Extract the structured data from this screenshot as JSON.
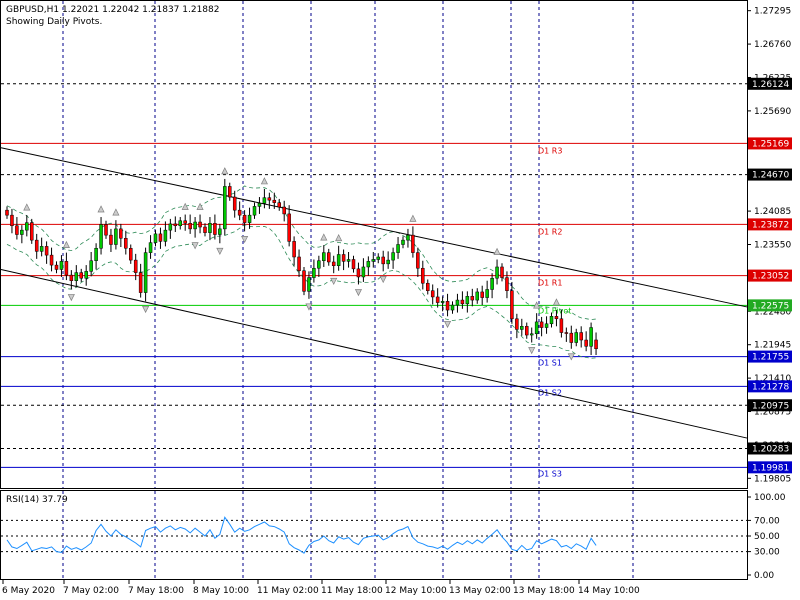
{
  "header": {
    "symbol_line": "GBPUSD,H1  1.22021 1.22042 1.21837 1.21882",
    "subtitle": "Showing Daily Pivots."
  },
  "colors": {
    "background": "#ffffff",
    "bull": "#00c800",
    "bear": "#ff0000",
    "envelope": "#2e8b57",
    "rsi": "#1e90ff",
    "grid": "#00008b",
    "resistance": "#dd0000",
    "support": "#0000cc",
    "pivot": "#00cc00",
    "fractal": "#808080",
    "channel": "#000000"
  },
  "price_axis": {
    "ticks": [
      "1.27295",
      "1.26760",
      "1.26225",
      "1.25690",
      "1.25155",
      "1.24620",
      "1.24085",
      "1.23550",
      "1.23015",
      "1.22480",
      "1.21945",
      "1.21410",
      "1.20875",
      "1.20340",
      "1.19805"
    ],
    "boxes": [
      {
        "label": "1.26124",
        "color": "#000000"
      },
      {
        "label": "1.25169",
        "color": "#dd0000"
      },
      {
        "label": "1.24670",
        "color": "#000000"
      },
      {
        "label": "1.23872",
        "color": "#dd0000"
      },
      {
        "label": "1.23052",
        "color": "#dd0000"
      },
      {
        "label": "1.22575",
        "color": "#22aa22"
      },
      {
        "label": "1.21755",
        "color": "#0000cc"
      },
      {
        "label": "1.21278",
        "color": "#0000cc"
      },
      {
        "label": "1.20975",
        "color": "#000000"
      },
      {
        "label": "1.20283",
        "color": "#000000"
      },
      {
        "label": "1.19981",
        "color": "#0000cc"
      }
    ]
  },
  "pivots": [
    {
      "label": "D1 R3",
      "value": 1.25169
    },
    {
      "label": "D1 R2",
      "value": 1.23872
    },
    {
      "label": "D1 R1",
      "value": 1.23052
    },
    {
      "label": "D1 Pivot",
      "value": 1.22575
    },
    {
      "label": "D1 S1",
      "value": 1.21755
    },
    {
      "label": "D1 S2",
      "value": 1.21278
    },
    {
      "label": "D1 S3",
      "value": 1.19981
    }
  ],
  "dotted_levels": [
    1.26124,
    1.2467,
    1.20975,
    1.20283
  ],
  "rsi": {
    "label": "RSI(14) 37.79",
    "ticks": [
      "100.00",
      "70.00",
      "50.00",
      "30.00",
      "0.00"
    ]
  },
  "time_axis": [
    "6 May 2020",
    "7 May 02:00",
    "7 May 18:00",
    "8 May 10:00",
    "11 May 02:00",
    "11 May 18:00",
    "12 May 10:00",
    "13 May 02:00",
    "13 May 18:00",
    "14 May 10:00"
  ],
  "chart_data": {
    "type": "candlestick",
    "symbol": "GBPUSD",
    "timeframe": "H1",
    "last": {
      "open": 1.22021,
      "high": 1.22042,
      "low": 1.21837,
      "close": 1.21882
    },
    "price_range": [
      1.1965,
      1.2745
    ],
    "closes": [
      1.2402,
      1.2385,
      1.2371,
      1.2378,
      1.239,
      1.2362,
      1.2344,
      1.2352,
      1.2338,
      1.2322,
      1.2315,
      1.2328,
      1.2306,
      1.2297,
      1.231,
      1.2301,
      1.2312,
      1.2329,
      1.2349,
      1.2387,
      1.237,
      1.2355,
      1.238,
      1.2365,
      1.2349,
      1.233,
      1.231,
      1.2278,
      1.2342,
      1.2358,
      1.2372,
      1.236,
      1.2378,
      1.2388,
      1.2385,
      1.2393,
      1.2389,
      1.238,
      1.2391,
      1.2383,
      1.2374,
      1.2389,
      1.2371,
      1.238,
      1.2448,
      1.2431,
      1.241,
      1.2402,
      1.239,
      1.2402,
      1.2416,
      1.2421,
      1.243,
      1.2426,
      1.2422,
      1.2415,
      1.2404,
      1.236,
      1.2335,
      1.2313,
      1.228,
      1.2302,
      1.2317,
      1.2329,
      1.2342,
      1.2327,
      1.2321,
      1.2339,
      1.2328,
      1.2331,
      1.2316,
      1.2303,
      1.2319,
      1.2328,
      1.2331,
      1.2335,
      1.2324,
      1.233,
      1.2342,
      1.2355,
      1.2362,
      1.237,
      1.2342,
      1.2317,
      1.2293,
      1.2281,
      1.2271,
      1.2262,
      1.2264,
      1.225,
      1.2258,
      1.2266,
      1.226,
      1.2272,
      1.2266,
      1.2279,
      1.227,
      1.2283,
      1.2301,
      1.2319,
      1.2302,
      1.2281,
      1.2236,
      1.2219,
      1.2224,
      1.221,
      1.2212,
      1.2231,
      1.2222,
      1.2228,
      1.224,
      1.2236,
      1.2214,
      1.2213,
      1.2198,
      1.2214,
      1.2202,
      1.2192,
      1.2222,
      1.2188
    ],
    "rsi_values": [
      45,
      36,
      34,
      38,
      42,
      31,
      33,
      35,
      34,
      36,
      30,
      29,
      37,
      33,
      35,
      32,
      36,
      41,
      57,
      65,
      56,
      50,
      58,
      52,
      49,
      45,
      41,
      36,
      57,
      60,
      62,
      55,
      60,
      63,
      58,
      61,
      59,
      54,
      60,
      55,
      50,
      58,
      47,
      52,
      74,
      65,
      55,
      60,
      56,
      58,
      62,
      65,
      68,
      63,
      62,
      59,
      55,
      40,
      35,
      32,
      28,
      38,
      43,
      45,
      50,
      44,
      41,
      49,
      46,
      48,
      42,
      39,
      47,
      49,
      50,
      51,
      45,
      48,
      53,
      57,
      59,
      62,
      48,
      42,
      40,
      37,
      36,
      34,
      37,
      33,
      38,
      42,
      39,
      44,
      40,
      45,
      41,
      47,
      52,
      58,
      49,
      42,
      33,
      31,
      38,
      32,
      34,
      44,
      40,
      43,
      46,
      44,
      36,
      38,
      34,
      40,
      37,
      33,
      47,
      38
    ],
    "channel_upper": [
      [
        0,
        1.251
      ],
      [
        120,
        1.2255
      ]
    ],
    "channel_lower": [
      [
        0,
        1.2315
      ],
      [
        120,
        1.2045
      ]
    ]
  }
}
